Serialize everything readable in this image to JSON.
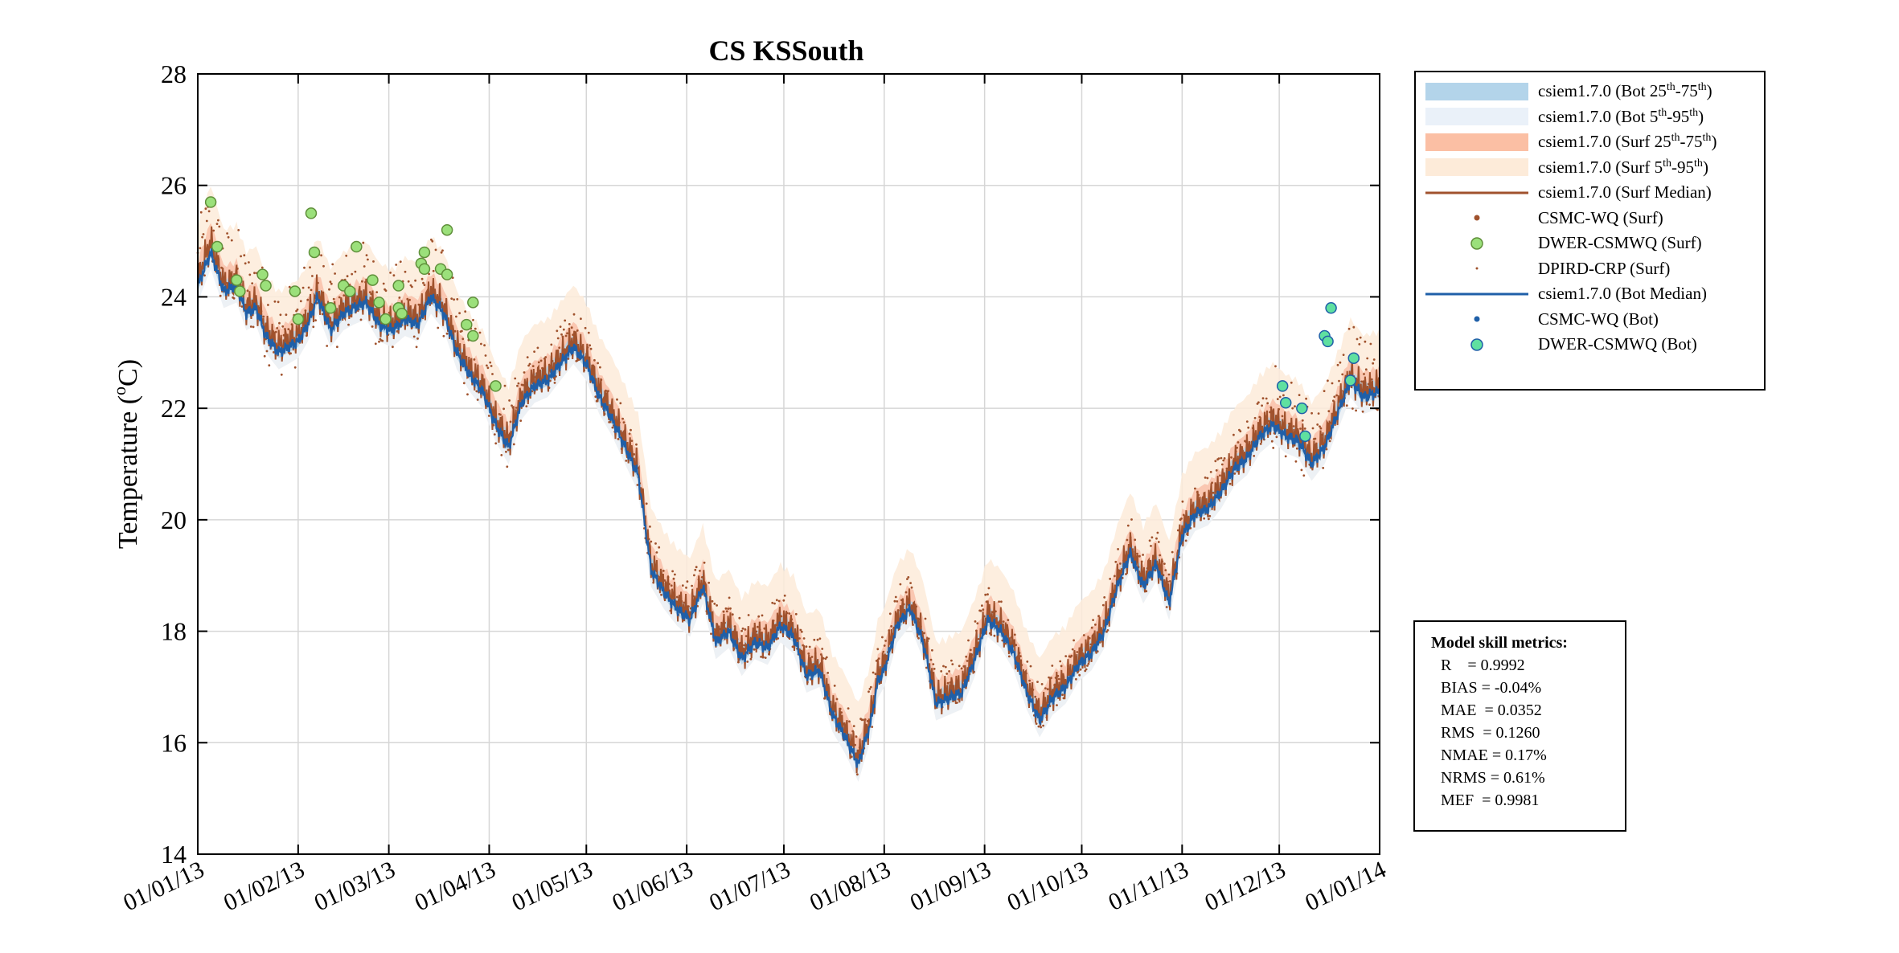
{
  "chart_data": {
    "type": "line",
    "title": "CS KSSouth",
    "ylabel": "Temperature (°C)",
    "ylabel_parts": {
      "main": "Temperature (",
      "degree": "o",
      "unit": "C)"
    },
    "xlabel": "",
    "ylim": [
      14,
      28
    ],
    "yticks": [
      14,
      16,
      18,
      20,
      22,
      24,
      26,
      28
    ],
    "xlim_days": [
      0,
      365
    ],
    "xticks": [
      {
        "day": 0,
        "label": "01/01/13"
      },
      {
        "day": 31,
        "label": "01/02/13"
      },
      {
        "day": 59,
        "label": "01/03/13"
      },
      {
        "day": 90,
        "label": "01/04/13"
      },
      {
        "day": 120,
        "label": "01/05/13"
      },
      {
        "day": 151,
        "label": "01/06/13"
      },
      {
        "day": 181,
        "label": "01/07/13"
      },
      {
        "day": 212,
        "label": "01/08/13"
      },
      {
        "day": 243,
        "label": "01/09/13"
      },
      {
        "day": 273,
        "label": "01/10/13"
      },
      {
        "day": 304,
        "label": "01/11/13"
      },
      {
        "day": 334,
        "label": "01/12/13"
      },
      {
        "day": 365,
        "label": "01/01/14"
      }
    ],
    "grid": true,
    "surf_median": {
      "name": "csiem1.7.0 (Surf Median)",
      "color": "#a0522d",
      "day": [
        0,
        4,
        8,
        12,
        15,
        18,
        21,
        25,
        28,
        31,
        34,
        37,
        41,
        45,
        48,
        52,
        56,
        60,
        64,
        68,
        72,
        76,
        80,
        84,
        88,
        92,
        96,
        100,
        104,
        108,
        112,
        116,
        120,
        124,
        128,
        132,
        136,
        140,
        144,
        148,
        152,
        156,
        160,
        164,
        168,
        172,
        176,
        180,
        184,
        188,
        192,
        196,
        200,
        204,
        208,
        210,
        212,
        216,
        220,
        224,
        228,
        232,
        236,
        240,
        244,
        248,
        252,
        256,
        260,
        264,
        268,
        272,
        276,
        280,
        284,
        288,
        292,
        296,
        300,
        304,
        308,
        312,
        316,
        320,
        324,
        328,
        332,
        336,
        340,
        344,
        348,
        352,
        356,
        360,
        365
      ],
      "value": [
        24.3,
        25.0,
        24.2,
        24.3,
        23.8,
        23.9,
        23.4,
        23.1,
        23.2,
        23.3,
        23.6,
        24.1,
        23.5,
        23.8,
        23.9,
        24.0,
        23.6,
        23.5,
        23.7,
        23.6,
        24.1,
        23.8,
        23.1,
        22.7,
        22.4,
        21.8,
        21.4,
        22.2,
        22.5,
        22.6,
        22.9,
        23.2,
        22.9,
        22.3,
        21.9,
        21.4,
        20.9,
        19.2,
        18.8,
        18.5,
        18.3,
        18.9,
        17.9,
        18.1,
        17.6,
        17.9,
        17.8,
        18.2,
        18.0,
        17.3,
        17.4,
        16.6,
        16.2,
        15.7,
        16.5,
        17.2,
        17.4,
        18.2,
        18.5,
        17.9,
        16.8,
        16.9,
        17.0,
        17.6,
        18.3,
        18.1,
        17.7,
        17.0,
        16.5,
        16.9,
        17.1,
        17.5,
        17.7,
        18.1,
        18.9,
        19.5,
        18.9,
        19.3,
        18.6,
        19.8,
        20.2,
        20.3,
        20.6,
        21.0,
        21.2,
        21.6,
        21.8,
        21.6,
        21.5,
        21.1,
        21.4,
        22.0,
        22.6,
        22.3,
        22.4
      ]
    },
    "bot_median": {
      "name": "csiem1.7.0 (Bot Median)",
      "color": "#1f5fa8",
      "day": [
        0,
        4,
        8,
        12,
        15,
        18,
        21,
        25,
        28,
        31,
        34,
        37,
        41,
        45,
        48,
        52,
        56,
        60,
        64,
        68,
        72,
        76,
        80,
        84,
        88,
        92,
        96,
        100,
        104,
        108,
        112,
        116,
        120,
        124,
        128,
        132,
        136,
        140,
        144,
        148,
        152,
        156,
        160,
        164,
        168,
        172,
        176,
        180,
        184,
        188,
        192,
        196,
        200,
        204,
        208,
        210,
        212,
        216,
        220,
        224,
        228,
        232,
        236,
        240,
        244,
        248,
        252,
        256,
        260,
        264,
        268,
        272,
        276,
        280,
        284,
        288,
        292,
        296,
        300,
        304,
        308,
        312,
        316,
        320,
        324,
        328,
        332,
        336,
        340,
        344,
        348,
        352,
        356,
        360,
        365
      ],
      "value": [
        24.2,
        24.8,
        24.1,
        24.2,
        23.7,
        23.8,
        23.3,
        23.0,
        23.1,
        23.2,
        23.5,
        24.0,
        23.4,
        23.7,
        23.8,
        23.9,
        23.5,
        23.4,
        23.6,
        23.5,
        24.0,
        23.7,
        23.0,
        22.6,
        22.3,
        21.7,
        21.3,
        22.1,
        22.4,
        22.5,
        22.8,
        23.1,
        22.8,
        22.2,
        21.8,
        21.3,
        20.8,
        19.1,
        18.7,
        18.4,
        18.2,
        18.8,
        17.8,
        18.0,
        17.5,
        17.8,
        17.7,
        18.1,
        17.9,
        17.2,
        17.3,
        16.5,
        16.1,
        15.6,
        16.4,
        17.1,
        17.3,
        18.1,
        18.4,
        17.8,
        16.7,
        16.8,
        16.9,
        17.5,
        18.2,
        18.0,
        17.6,
        16.9,
        16.4,
        16.8,
        17.0,
        17.4,
        17.6,
        18.0,
        18.8,
        19.4,
        18.8,
        19.2,
        18.5,
        19.7,
        20.1,
        20.2,
        20.5,
        20.9,
        21.1,
        21.5,
        21.7,
        21.5,
        21.4,
        21.0,
        21.3,
        21.9,
        22.5,
        22.2,
        22.3
      ]
    },
    "obs": {
      "dwer_surf": {
        "name": "DWER-CSMWQ (Surf)",
        "day": [
          4,
          6,
          12,
          13,
          20,
          21,
          30,
          31,
          35,
          36,
          41,
          45,
          47,
          49,
          54,
          56,
          58,
          62,
          62,
          63,
          69,
          70,
          70,
          75,
          77,
          77,
          83,
          85,
          85,
          92
        ],
        "value": [
          25.7,
          24.9,
          24.3,
          24.1,
          24.4,
          24.2,
          24.1,
          23.6,
          25.5,
          24.8,
          23.8,
          24.2,
          24.1,
          24.9,
          24.3,
          23.9,
          23.6,
          24.2,
          23.8,
          23.7,
          24.6,
          24.8,
          24.5,
          24.5,
          25.2,
          24.4,
          23.5,
          23.3,
          23.9,
          22.4
        ]
      },
      "dwer_bot": {
        "name": "DWER-CSMWQ (Bot)",
        "day": [
          335,
          336,
          341,
          342,
          348,
          349,
          350,
          356,
          357
        ],
        "value": [
          22.4,
          22.1,
          22.0,
          21.5,
          23.3,
          23.2,
          23.8,
          22.5,
          22.9
        ]
      }
    },
    "legend": [
      {
        "label": "csiem1.7.0 (Bot 25",
        "sup1": "th",
        "mid": "-75",
        "sup2": "th",
        "end": ")",
        "color": "#b3d4ea",
        "style": "band"
      },
      {
        "label": "csiem1.7.0 (Bot 5",
        "sup1": "th",
        "mid": "-95",
        "sup2": "th",
        "end": ")",
        "color": "#eaf1f9",
        "style": "band"
      },
      {
        "label": "csiem1.7.0 (Surf 25",
        "sup1": "th",
        "mid": "-75",
        "sup2": "th",
        "end": ")",
        "color": "#fbbfa4",
        "style": "band"
      },
      {
        "label": "csiem1.7.0 (Surf 5",
        "sup1": "th",
        "mid": "-95",
        "sup2": "th",
        "end": ")",
        "color": "#fdebd9",
        "style": "band"
      },
      {
        "label": "csiem1.7.0 (Surf Median)",
        "color": "#a0522d",
        "style": "line"
      },
      {
        "label": "CSMC-WQ (Surf)",
        "color": "#a0522d",
        "style": "dot"
      },
      {
        "label": "DWER-CSMWQ (Surf)",
        "color": "#9be07b",
        "style": "circle"
      },
      {
        "label": "DPIRD-CRP (Surf)",
        "color": "#a0522d",
        "style": "tiny"
      },
      {
        "label": "csiem1.7.0 (Bot Median)",
        "color": "#1f5fa8",
        "style": "line"
      },
      {
        "label": "CSMC-WQ (Bot)",
        "color": "#1f5fa8",
        "style": "dot"
      },
      {
        "label": "DWER-CSMWQ (Bot)",
        "color": "#5fe0a0",
        "style": "circle"
      }
    ],
    "metrics": {
      "title": "Model skill metrics:",
      "lines": [
        "R    = 0.9992",
        "BIAS = -0.04%",
        "MAE  = 0.0352",
        "RMS  = 0.1260",
        "NMAE = 0.17%",
        "NRMS = 0.61%",
        "MEF  = 0.9981"
      ]
    }
  }
}
